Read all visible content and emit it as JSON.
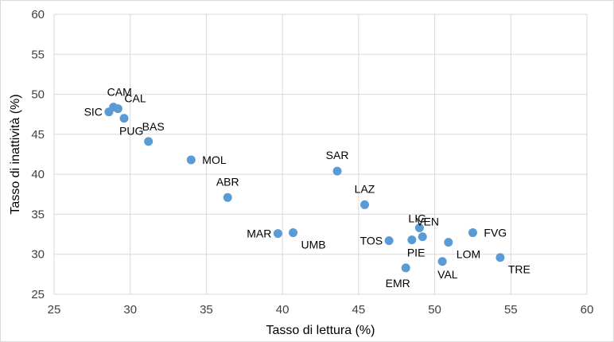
{
  "chart_data": {
    "type": "scatter",
    "xlabel": "Tasso di lettura (%)",
    "ylabel": "Tasso di inattività (%)",
    "xlim": [
      25,
      60
    ],
    "ylim": [
      25,
      60
    ],
    "xticks": [
      "25",
      "30",
      "35",
      "40",
      "45",
      "50",
      "55",
      "60"
    ],
    "yticks": [
      "25",
      "30",
      "35",
      "40",
      "45",
      "50",
      "55",
      "60"
    ],
    "grid": true,
    "color": "#5b9bd5",
    "points": [
      {
        "label": "CAM",
        "x": 28.9,
        "y": 48.4,
        "pos": "above-right"
      },
      {
        "label": "CAL",
        "x": 29.2,
        "y": 48.2,
        "pos": "right-up"
      },
      {
        "label": "SIC",
        "x": 28.6,
        "y": 47.8,
        "pos": "left"
      },
      {
        "label": "PUG",
        "x": 29.6,
        "y": 47.0,
        "pos": "below"
      },
      {
        "label": "BAS",
        "x": 31.2,
        "y": 44.1,
        "pos": "above-right"
      },
      {
        "label": "MOL",
        "x": 34.0,
        "y": 41.8,
        "pos": "right"
      },
      {
        "label": "ABR",
        "x": 36.4,
        "y": 37.1,
        "pos": "above"
      },
      {
        "label": "SAR",
        "x": 43.6,
        "y": 40.4,
        "pos": "above"
      },
      {
        "label": "LAZ",
        "x": 45.4,
        "y": 36.2,
        "pos": "above"
      },
      {
        "label": "MAR",
        "x": 39.7,
        "y": 32.6,
        "pos": "left"
      },
      {
        "label": "UMB",
        "x": 40.7,
        "y": 32.7,
        "pos": "below-right"
      },
      {
        "label": "TOS",
        "x": 47.0,
        "y": 31.7,
        "pos": "left"
      },
      {
        "label": "PIE",
        "x": 48.5,
        "y": 31.8,
        "pos": "below"
      },
      {
        "label": "LIG",
        "x": 49.0,
        "y": 33.3,
        "pos": "above-left"
      },
      {
        "label": "VEN",
        "x": 49.2,
        "y": 32.2,
        "pos": "above-right"
      },
      {
        "label": "EMR",
        "x": 48.1,
        "y": 28.3,
        "pos": "below-left"
      },
      {
        "label": "VAL",
        "x": 50.5,
        "y": 29.1,
        "pos": "below"
      },
      {
        "label": "LOM",
        "x": 50.9,
        "y": 31.5,
        "pos": "below-right"
      },
      {
        "label": "FVG",
        "x": 52.5,
        "y": 32.7,
        "pos": "right"
      },
      {
        "label": "TRE",
        "x": 54.3,
        "y": 29.6,
        "pos": "below-right"
      }
    ]
  }
}
